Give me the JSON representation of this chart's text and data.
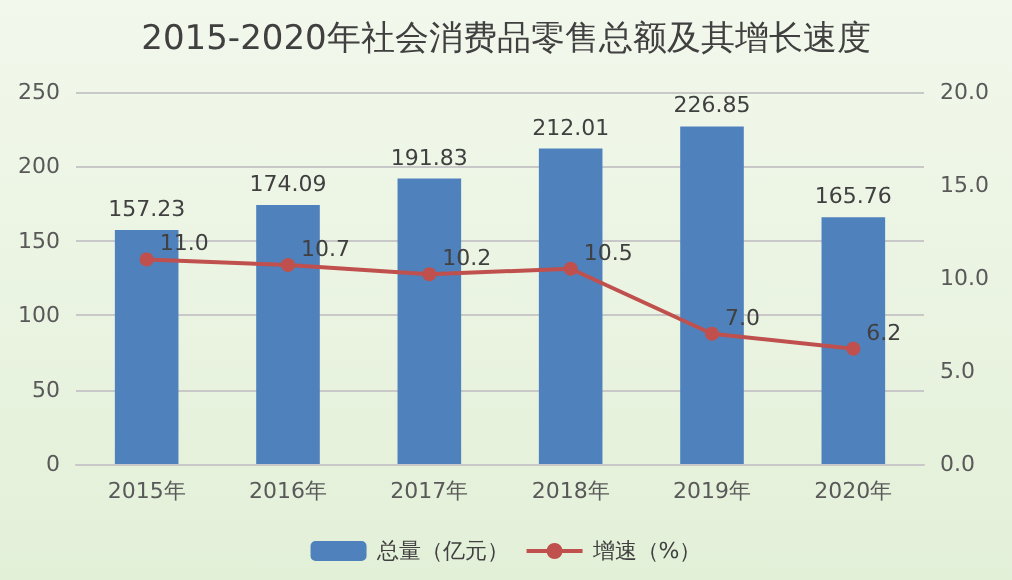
{
  "chart_data": {
    "type": "bar",
    "title": "2015-2020年社会消费品零售总额及其增长速度",
    "categories": [
      "2015年",
      "2016年",
      "2017年",
      "2018年",
      "2019年",
      "2020年"
    ],
    "series": [
      {
        "name": "总量（亿元）",
        "color": "#4f81bd",
        "values": [
          157.23,
          174.09,
          191.83,
          212.01,
          226.85,
          165.76
        ],
        "value_labels": [
          "157.23",
          "174.09",
          "191.83",
          "212.01",
          "226.85",
          "165.76"
        ]
      },
      {
        "name": "增速（%）",
        "type": "line",
        "axis": "y2",
        "color": "#c0504d",
        "values": [
          11.0,
          10.7,
          10.2,
          10.5,
          7.0,
          6.2
        ],
        "value_labels": [
          "11.0",
          "10.7",
          "10.2",
          "10.5",
          "7.0",
          "6.2"
        ]
      }
    ],
    "ylim": [
      0,
      250
    ],
    "yticks": [
      0,
      50,
      100,
      150,
      200,
      250
    ],
    "y2lim": [
      0,
      20
    ],
    "y2ticks": [
      {
        "value": 0,
        "label": "0.0"
      },
      {
        "value": 5,
        "label": "5.0"
      },
      {
        "value": 10,
        "label": "10.0"
      },
      {
        "value": 15,
        "label": "15.0"
      },
      {
        "value": 20,
        "label": "20.0"
      }
    ],
    "grid": "y",
    "legend": "bottom",
    "marker": "circle",
    "line_style": "solid"
  }
}
